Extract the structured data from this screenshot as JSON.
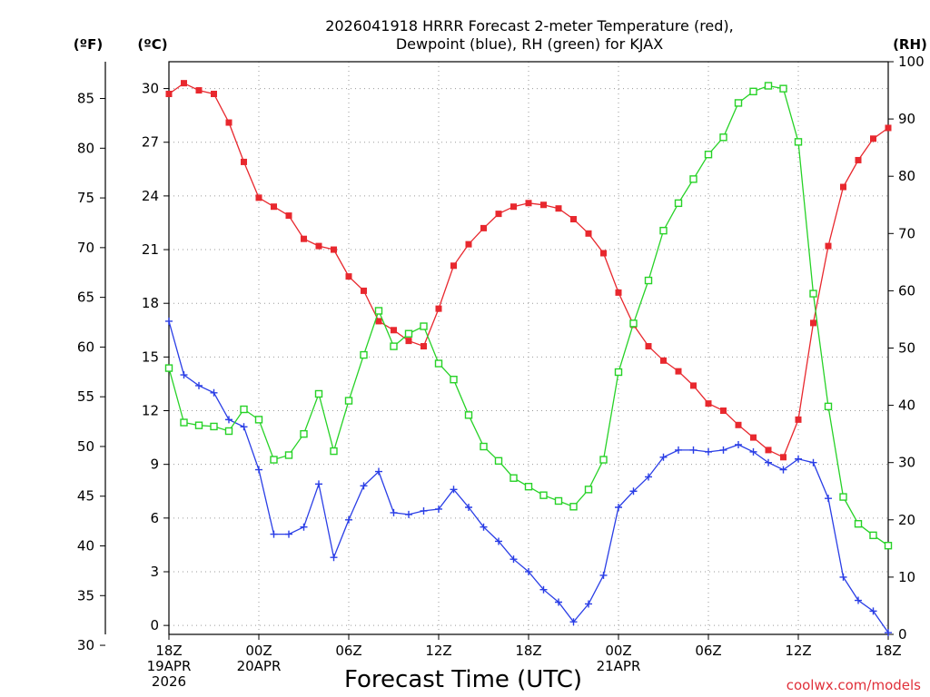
{
  "chart_data": {
    "type": "line",
    "title_line1": "2026041918 HRRR Forecast 2-meter Temperature (red),",
    "title_line2": "Dewpoint (blue), RH (green) for KJAX",
    "xlabel": "Forecast Time (UTC)",
    "credit": "coolwx.com/models",
    "x_hours": [
      0,
      1,
      2,
      3,
      4,
      5,
      6,
      7,
      8,
      9,
      10,
      11,
      12,
      13,
      14,
      15,
      16,
      17,
      18,
      19,
      20,
      21,
      22,
      23,
      24,
      25,
      26,
      27,
      28,
      29,
      30,
      31,
      32,
      33,
      34,
      35,
      36,
      37,
      38,
      39,
      40,
      41,
      42,
      43,
      44,
      45,
      46,
      47,
      48
    ],
    "xlim": [
      0,
      48
    ],
    "x_ticks": [
      {
        "hour": 0,
        "lines": [
          "18Z",
          "19APR",
          "2026"
        ]
      },
      {
        "hour": 6,
        "lines": [
          "00Z",
          "20APR"
        ]
      },
      {
        "hour": 12,
        "lines": [
          "06Z"
        ]
      },
      {
        "hour": 18,
        "lines": [
          "12Z"
        ]
      },
      {
        "hour": 24,
        "lines": [
          "18Z"
        ]
      },
      {
        "hour": 30,
        "lines": [
          "00Z",
          "21APR"
        ]
      },
      {
        "hour": 36,
        "lines": [
          "06Z"
        ]
      },
      {
        "hour": 42,
        "lines": [
          "12Z"
        ]
      },
      {
        "hour": 48,
        "lines": [
          "18Z"
        ]
      }
    ],
    "axes": {
      "celsius": {
        "unit_label": "(ºC)",
        "ticks": [
          0,
          3,
          6,
          9,
          12,
          15,
          18,
          21,
          24,
          27,
          30
        ],
        "range": [
          -0.5,
          31.5
        ]
      },
      "fahrenheit": {
        "unit_label": "(ºF)",
        "ticks": [
          30,
          35,
          40,
          45,
          50,
          55,
          60,
          65,
          70,
          75,
          80,
          85
        ],
        "range": [
          31.1,
          88.7
        ]
      },
      "rh": {
        "unit_label": "(RH)",
        "ticks": [
          0,
          10,
          20,
          30,
          40,
          50,
          60,
          70,
          80,
          90,
          100
        ],
        "range": [
          0,
          100
        ]
      }
    },
    "series": [
      {
        "name": "Temperature",
        "axis": "celsius",
        "color": "#e8282e",
        "marker": "filled-square",
        "values": [
          29.7,
          30.3,
          29.9,
          29.7,
          28.1,
          25.9,
          23.9,
          23.4,
          22.9,
          21.6,
          21.2,
          21.0,
          19.5,
          18.7,
          17.0,
          16.5,
          15.9,
          15.6,
          17.7,
          20.1,
          21.3,
          22.2,
          23.0,
          23.4,
          23.6,
          23.5,
          23.3,
          22.7,
          21.9,
          20.8,
          18.6,
          16.8,
          15.6,
          14.8,
          14.2,
          13.4,
          12.4,
          12.0,
          11.2,
          10.5,
          9.8,
          9.4,
          11.5,
          16.9,
          21.2,
          24.5,
          26.0,
          27.2,
          27.8
        ]
      },
      {
        "name": "Dewpoint",
        "axis": "celsius",
        "color": "#2a3ee6",
        "marker": "plus",
        "values": [
          17.0,
          14.0,
          13.4,
          13.0,
          11.5,
          11.1,
          8.7,
          5.1,
          5.1,
          5.5,
          7.9,
          3.8,
          5.9,
          7.8,
          8.6,
          6.3,
          6.2,
          6.4,
          6.5,
          7.6,
          6.6,
          5.5,
          4.7,
          3.7,
          3.0,
          2.0,
          1.3,
          0.2,
          1.2,
          2.8,
          6.6,
          7.5,
          8.3,
          9.4,
          9.8,
          9.8,
          9.7,
          9.8,
          10.1,
          9.7,
          9.1,
          8.7,
          9.3,
          9.1,
          7.1,
          2.7,
          1.4,
          0.8,
          -0.4
        ]
      },
      {
        "name": "RH",
        "axis": "rh",
        "color": "#27d227",
        "marker": "open-square",
        "values": [
          46.5,
          37.0,
          36.5,
          36.3,
          35.5,
          39.3,
          37.5,
          30.5,
          31.3,
          35.0,
          42.0,
          32.0,
          40.8,
          48.8,
          56.5,
          50.3,
          52.5,
          53.8,
          47.3,
          44.5,
          38.3,
          32.8,
          30.3,
          27.3,
          25.8,
          24.3,
          23.3,
          22.3,
          25.3,
          30.5,
          45.8,
          54.3,
          61.8,
          70.5,
          75.3,
          79.5,
          83.8,
          86.8,
          92.8,
          94.8,
          95.8,
          95.3,
          86.0,
          59.5,
          39.8,
          24.0,
          19.3,
          17.3,
          15.5
        ]
      }
    ]
  }
}
